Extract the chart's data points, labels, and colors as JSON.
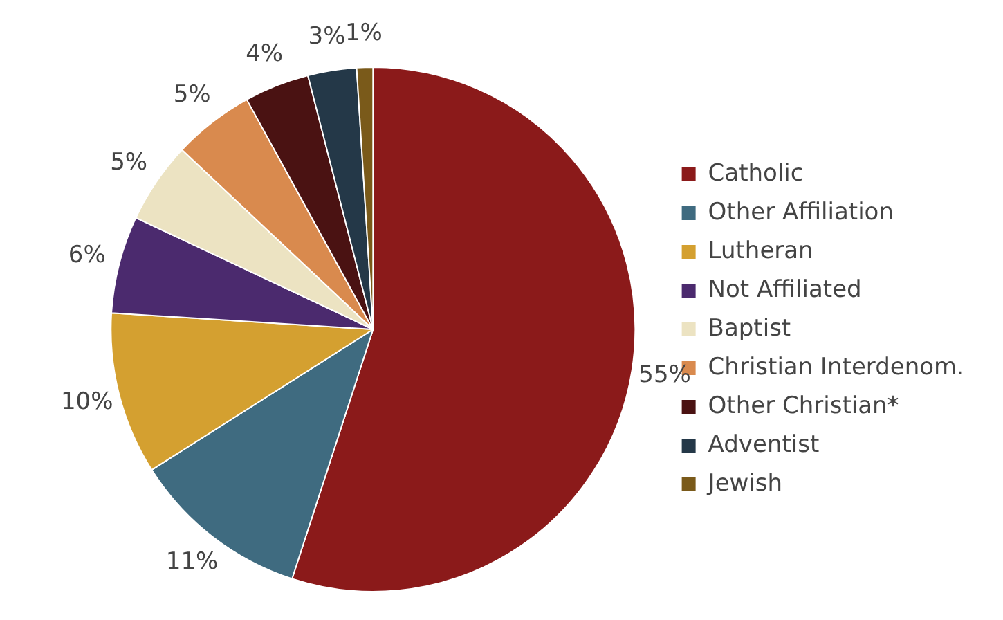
{
  "chart_data": {
    "type": "pie",
    "categories": [
      "Catholic",
      "Other Affiliation",
      "Lutheran",
      "Not Affiliated",
      "Baptist",
      "Christian Interdenom.",
      "Other Christian*",
      "Adventist",
      "Jewish"
    ],
    "values": [
      55,
      11,
      10,
      6,
      5,
      5,
      4,
      3,
      1
    ],
    "colors": [
      "#8b1a1a",
      "#3f6b80",
      "#d4a030",
      "#4b2a6e",
      "#ece3c2",
      "#d98a4e",
      "#4a1212",
      "#243848",
      "#7a5a1a"
    ],
    "value_labels": [
      "55%",
      "11%",
      "10%",
      "6%",
      "5%",
      "5%",
      "4%",
      "3%",
      "1%"
    ],
    "legend": "right"
  }
}
